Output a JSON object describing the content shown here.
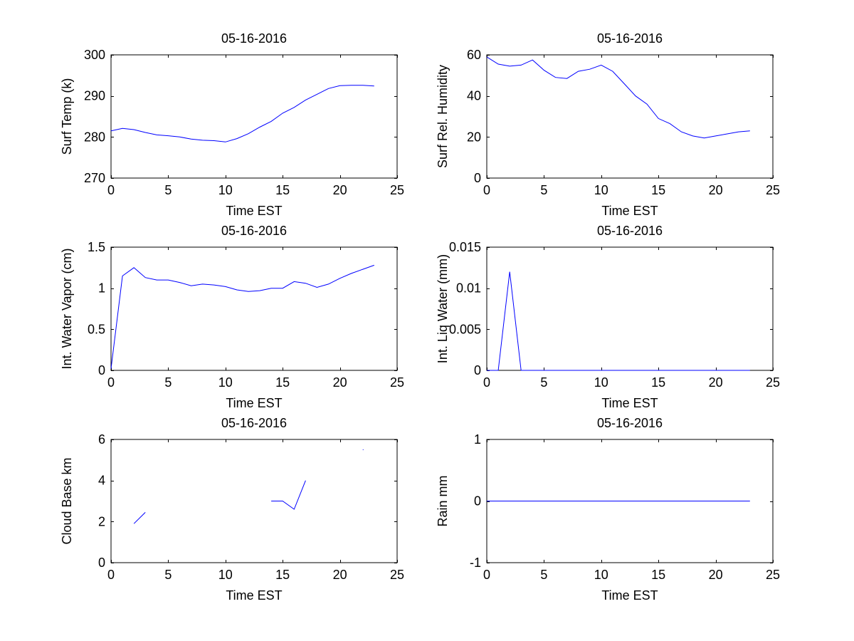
{
  "figure": {
    "background": "#ffffff",
    "line_color": "#0000ff",
    "axis_color": "#000000"
  },
  "chart_data": [
    {
      "type": "line",
      "title": "05-16-2016",
      "xlabel": "Time EST",
      "ylabel": "Surf Temp (k)",
      "xlim": [
        0,
        25
      ],
      "ylim": [
        270,
        300
      ],
      "xticks": [
        0,
        5,
        10,
        15,
        20,
        25
      ],
      "xticklabels": [
        "0",
        "5",
        "10",
        "15",
        "20",
        "25"
      ],
      "yticks": [
        270,
        280,
        290,
        300
      ],
      "yticklabels": [
        "270",
        "280",
        "290",
        "300"
      ],
      "series": [
        {
          "name": "Surf Temp",
          "x": [
            0,
            1,
            2,
            3,
            4,
            5,
            6,
            7,
            8,
            9,
            10,
            11,
            12,
            13,
            14,
            15,
            16,
            17,
            18,
            19,
            20,
            21,
            22,
            23
          ],
          "y": [
            281.5,
            282.1,
            281.8,
            281.1,
            280.5,
            280.3,
            280.0,
            279.5,
            279.2,
            279.1,
            278.8,
            279.6,
            280.8,
            282.4,
            283.8,
            285.8,
            287.2,
            289.0,
            290.4,
            291.8,
            292.5,
            292.6,
            292.6,
            292.4
          ]
        }
      ]
    },
    {
      "type": "line",
      "title": "05-16-2016",
      "xlabel": "Time EST",
      "ylabel": "Surf Rel. Humidity",
      "xlim": [
        0,
        25
      ],
      "ylim": [
        0,
        60
      ],
      "xticks": [
        0,
        5,
        10,
        15,
        20,
        25
      ],
      "xticklabels": [
        "0",
        "5",
        "10",
        "15",
        "20",
        "25"
      ],
      "yticks": [
        0,
        20,
        40,
        60
      ],
      "yticklabels": [
        "0",
        "20",
        "40",
        "60"
      ],
      "series": [
        {
          "name": "Surf Rel. Humidity",
          "x": [
            0,
            1,
            2,
            3,
            4,
            5,
            6,
            7,
            8,
            9,
            10,
            11,
            12,
            13,
            14,
            15,
            16,
            17,
            18,
            19,
            20,
            21,
            22,
            23
          ],
          "y": [
            59,
            55.5,
            54.5,
            55,
            57.5,
            52.5,
            49,
            48.5,
            52,
            53,
            55,
            52,
            46,
            40,
            36,
            29,
            26.5,
            22.5,
            20.5,
            19.5,
            20.5,
            21.5,
            22.5,
            23
          ]
        }
      ]
    },
    {
      "type": "line",
      "title": "05-16-2016",
      "xlabel": "Time EST",
      "ylabel": "Int. Water Vapor (cm)",
      "xlim": [
        0,
        25
      ],
      "ylim": [
        0,
        1.5
      ],
      "xticks": [
        0,
        5,
        10,
        15,
        20,
        25
      ],
      "xticklabels": [
        "0",
        "5",
        "10",
        "15",
        "20",
        "25"
      ],
      "yticks": [
        0,
        0.5,
        1,
        1.5
      ],
      "yticklabels": [
        "0",
        "0.5",
        "1",
        "1.5"
      ],
      "series": [
        {
          "name": "Int. Water Vapor",
          "x": [
            0,
            1,
            2,
            3,
            4,
            5,
            6,
            7,
            8,
            9,
            10,
            11,
            12,
            13,
            14,
            15,
            16,
            17,
            18,
            19,
            20,
            21,
            22,
            23
          ],
          "y": [
            0.02,
            1.15,
            1.25,
            1.13,
            1.1,
            1.1,
            1.07,
            1.03,
            1.05,
            1.04,
            1.02,
            0.98,
            0.96,
            0.97,
            1.0,
            1.0,
            1.08,
            1.06,
            1.01,
            1.05,
            1.12,
            1.18,
            1.23,
            1.28
          ]
        }
      ]
    },
    {
      "type": "line",
      "title": "05-16-2016",
      "xlabel": "Time EST",
      "ylabel": "Int. Liq Water (mm)",
      "xlim": [
        0,
        25
      ],
      "ylim": [
        0,
        0.015
      ],
      "xticks": [
        0,
        5,
        10,
        15,
        20,
        25
      ],
      "xticklabels": [
        "0",
        "5",
        "10",
        "15",
        "20",
        "25"
      ],
      "yticks": [
        0,
        0.005,
        0.01,
        0.015
      ],
      "yticklabels": [
        "0",
        "0.005",
        "0.01",
        "0.015"
      ],
      "series": [
        {
          "name": "Int. Liq Water",
          "x": [
            0,
            1,
            2,
            3,
            4,
            5,
            6,
            7,
            8,
            9,
            10,
            11,
            12,
            13,
            14,
            15,
            16,
            17,
            18,
            19,
            20,
            21,
            22,
            23
          ],
          "y": [
            0,
            0,
            0.012,
            0,
            0,
            0,
            0,
            0,
            0,
            0,
            0,
            0,
            0,
            0,
            0,
            0,
            0,
            0,
            0,
            0,
            0,
            0,
            0,
            0
          ]
        }
      ]
    },
    {
      "type": "line",
      "title": "05-16-2016",
      "xlabel": "Time EST",
      "ylabel": "Cloud Base km",
      "xlim": [
        0,
        25
      ],
      "ylim": [
        0,
        6
      ],
      "xticks": [
        0,
        5,
        10,
        15,
        20,
        25
      ],
      "xticklabels": [
        "0",
        "5",
        "10",
        "15",
        "20",
        "25"
      ],
      "yticks": [
        0,
        2,
        4,
        6
      ],
      "yticklabels": [
        "0",
        "2",
        "4",
        "6"
      ],
      "series": [
        {
          "name": "Cloud Base",
          "x": [
            0,
            1,
            2,
            3,
            4,
            5,
            6,
            7,
            8,
            9,
            10,
            11,
            12,
            13,
            14,
            15,
            16,
            17,
            18,
            19,
            20,
            21,
            22,
            23
          ],
          "y": [
            null,
            null,
            1.9,
            2.45,
            null,
            null,
            null,
            null,
            null,
            null,
            null,
            null,
            null,
            null,
            3.0,
            3.0,
            2.6,
            4.0,
            null,
            null,
            null,
            null,
            5.5,
            null
          ]
        }
      ]
    },
    {
      "type": "line",
      "title": "05-16-2016",
      "xlabel": "Time EST",
      "ylabel": "Rain mm",
      "xlim": [
        0,
        25
      ],
      "ylim": [
        -1,
        1
      ],
      "xticks": [
        0,
        5,
        10,
        15,
        20,
        25
      ],
      "xticklabels": [
        "0",
        "5",
        "10",
        "15",
        "20",
        "25"
      ],
      "yticks": [
        -1,
        0,
        1
      ],
      "yticklabels": [
        "-1",
        "0",
        "1"
      ],
      "series": [
        {
          "name": "Rain",
          "x": [
            0,
            1,
            2,
            3,
            4,
            5,
            6,
            7,
            8,
            9,
            10,
            11,
            12,
            13,
            14,
            15,
            16,
            17,
            18,
            19,
            20,
            21,
            22,
            23
          ],
          "y": [
            0,
            0,
            0,
            0,
            0,
            0,
            0,
            0,
            0,
            0,
            0,
            0,
            0,
            0,
            0,
            0,
            0,
            0,
            0,
            0,
            0,
            0,
            0,
            0
          ]
        }
      ]
    }
  ]
}
